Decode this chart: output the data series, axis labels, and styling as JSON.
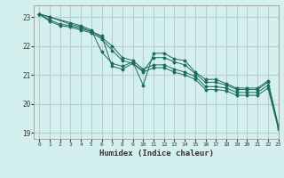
{
  "xlabel": "Humidex (Indice chaleur)",
  "xlim": [
    -0.5,
    23
  ],
  "ylim": [
    18.8,
    23.4
  ],
  "yticks": [
    19,
    20,
    21,
    22,
    23
  ],
  "xticks": [
    0,
    1,
    2,
    3,
    4,
    5,
    6,
    7,
    8,
    9,
    10,
    11,
    12,
    13,
    14,
    15,
    16,
    17,
    18,
    19,
    20,
    21,
    22,
    23
  ],
  "bg_color": "#d4f0ee",
  "line_color": "#1a6b5a",
  "grid_color": "#b8cece",
  "lines": [
    {
      "x": [
        0,
        1,
        3,
        4,
        5,
        6,
        7,
        8,
        9,
        10,
        11,
        12,
        13,
        14,
        15,
        16,
        17,
        18,
        19,
        20,
        21,
        22,
        23
      ],
      "y": [
        23.1,
        23.0,
        22.8,
        22.7,
        22.55,
        21.8,
        21.4,
        21.3,
        21.45,
        20.65,
        21.75,
        21.75,
        21.55,
        21.5,
        21.1,
        20.85,
        20.85,
        20.7,
        20.55,
        20.55,
        20.55,
        20.8,
        19.25
      ]
    },
    {
      "x": [
        0,
        1,
        3,
        4,
        5,
        6,
        7,
        8,
        9,
        10,
        11,
        12,
        13,
        14,
        15,
        16,
        17,
        18,
        19,
        20,
        21,
        22,
        23
      ],
      "y": [
        23.1,
        23.0,
        22.75,
        22.65,
        22.5,
        22.35,
        21.3,
        21.2,
        21.4,
        21.15,
        21.6,
        21.6,
        21.45,
        21.35,
        21.05,
        20.75,
        20.75,
        20.65,
        20.5,
        20.5,
        20.5,
        20.75,
        19.2
      ]
    },
    {
      "x": [
        0,
        1,
        2,
        3,
        4,
        5,
        6,
        7,
        8,
        9,
        10,
        11,
        12,
        13,
        14,
        15,
        16,
        17,
        18,
        19,
        20,
        21,
        22,
        23
      ],
      "y": [
        23.1,
        22.9,
        22.75,
        22.7,
        22.6,
        22.5,
        22.3,
        22.0,
        21.6,
        21.5,
        21.2,
        21.35,
        21.35,
        21.2,
        21.1,
        20.95,
        20.6,
        20.6,
        20.55,
        20.4,
        20.4,
        20.4,
        20.65,
        19.2
      ]
    },
    {
      "x": [
        0,
        1,
        2,
        3,
        4,
        5,
        6,
        7,
        8,
        9,
        10,
        11,
        12,
        13,
        14,
        15,
        16,
        17,
        18,
        19,
        20,
        21,
        22,
        23
      ],
      "y": [
        23.1,
        22.85,
        22.7,
        22.65,
        22.55,
        22.45,
        22.25,
        21.85,
        21.5,
        21.4,
        21.1,
        21.25,
        21.25,
        21.1,
        21.0,
        20.85,
        20.5,
        20.5,
        20.45,
        20.3,
        20.3,
        20.3,
        20.55,
        19.15
      ]
    }
  ]
}
